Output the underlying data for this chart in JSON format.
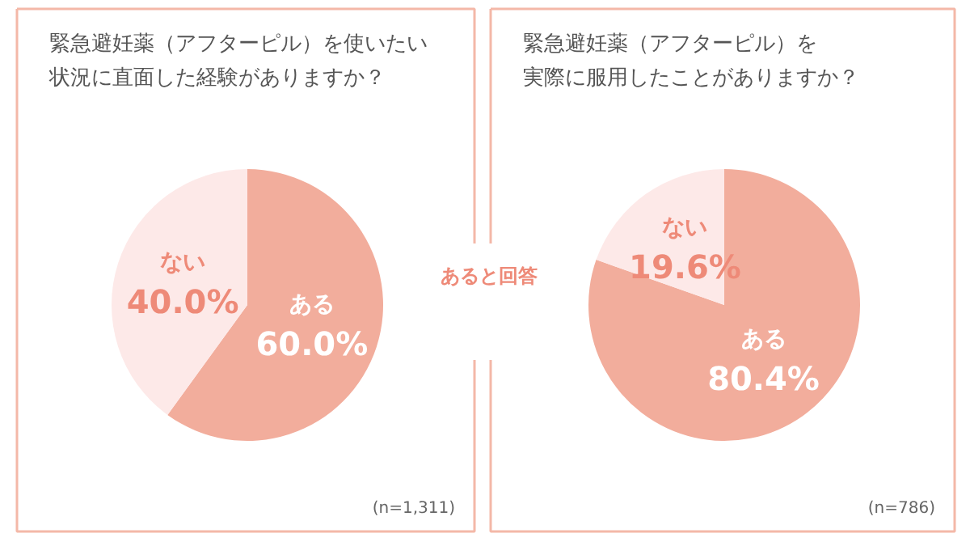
{
  "chart_data": [
    {
      "type": "pie",
      "title": "緊急避妊薬（アフターピル）を使いたい状況に直面した経験がありますか？",
      "categories": [
        "ある",
        "ない"
      ],
      "values": [
        60.0,
        40.0
      ],
      "colors": [
        "#f2ad9c",
        "#fde9e8"
      ],
      "value_labels": [
        "60.0%",
        "40.0%"
      ],
      "annotations": [
        "(n=1,311)"
      ]
    },
    {
      "type": "pie",
      "title": "緊急避妊薬（アフターピル）を実際に服用したことがありますか？",
      "categories": [
        "ある",
        "ない"
      ],
      "values": [
        80.4,
        19.6
      ],
      "colors": [
        "#f2ad9c",
        "#fde9e8"
      ],
      "value_labels": [
        "80.4%",
        "19.6%"
      ],
      "annotations": [
        "あると回答",
        "(n=786)"
      ]
    }
  ]
}
